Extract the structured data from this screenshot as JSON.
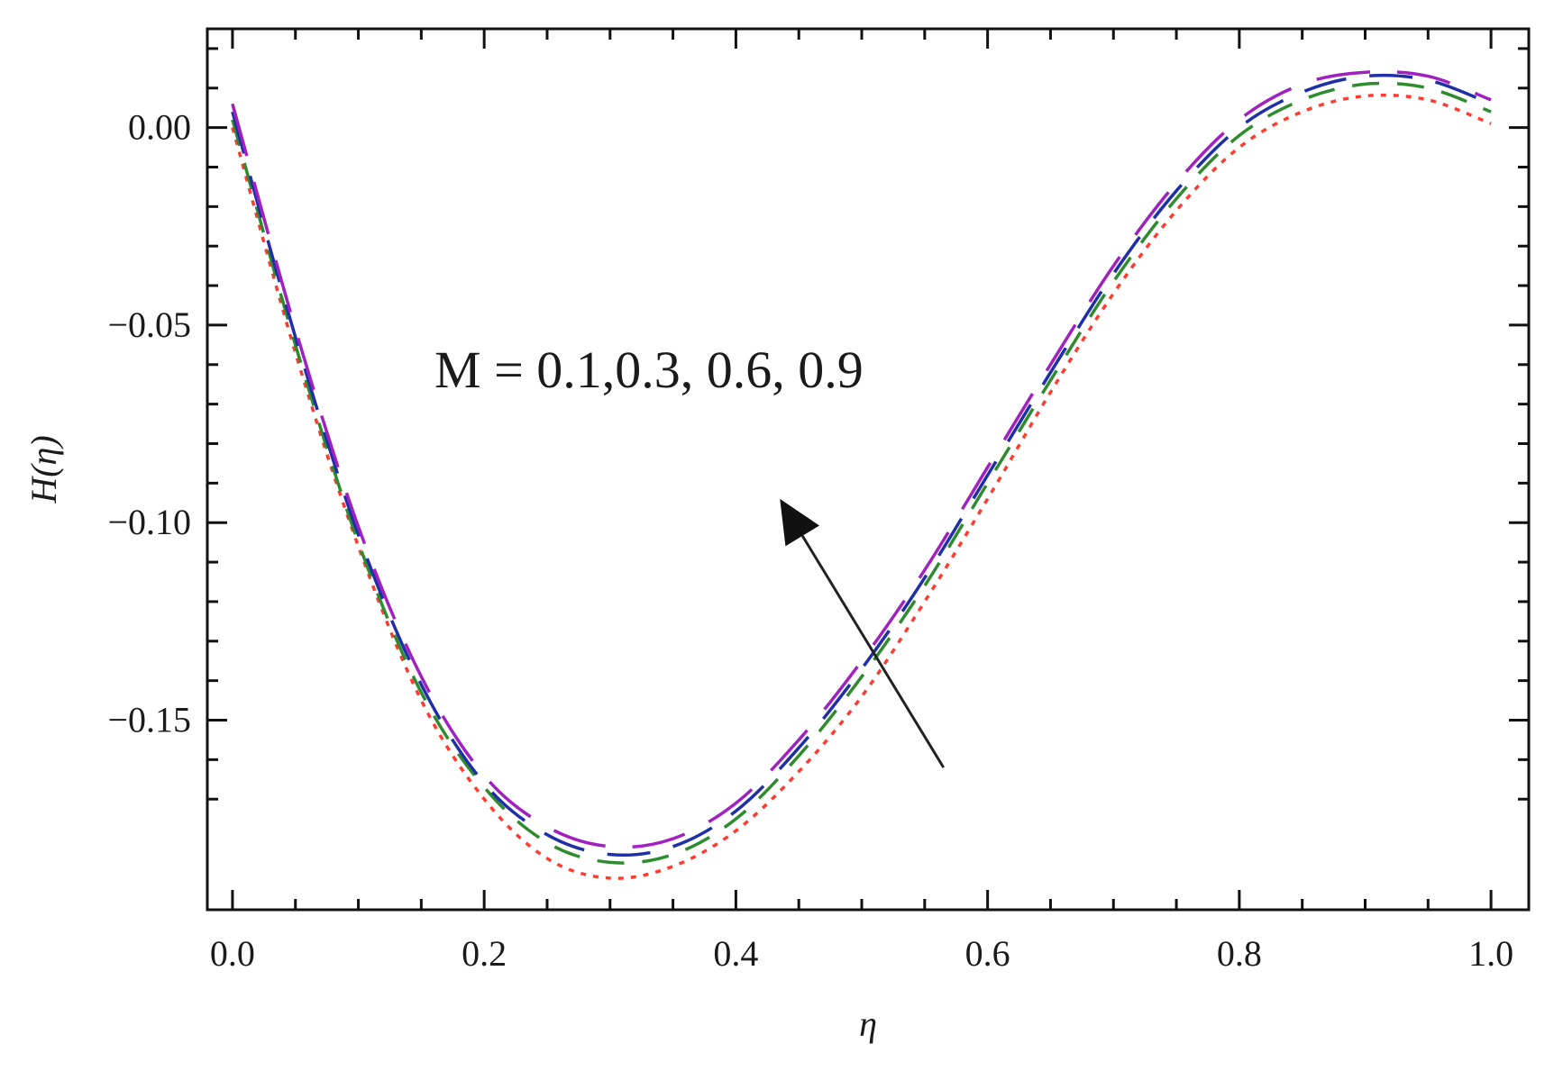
{
  "chart_data": {
    "type": "line",
    "xlabel": "η",
    "ylabel": "H(η)",
    "xlim": [
      -0.02,
      1.03
    ],
    "ylim": [
      -0.198,
      0.025
    ],
    "x_ticks": [
      0.0,
      0.2,
      0.4,
      0.6,
      0.8,
      1.0
    ],
    "x_tick_labels": [
      "0.0",
      "0.2",
      "0.4",
      "0.6",
      "0.8",
      "1.0"
    ],
    "y_ticks": [
      0.0,
      -0.05,
      -0.1,
      -0.15
    ],
    "y_tick_labels": [
      "0.00",
      "−0.05",
      "−0.10",
      "−0.15"
    ],
    "grid": false,
    "annotation": {
      "text": "M =  0.1,0.3, 0.6, 0.9",
      "arrow_from": [
        0.565,
        -0.162
      ],
      "arrow_to": [
        0.435,
        -0.094
      ]
    },
    "series": [
      {
        "color": "#ff3b30",
        "dash": "dotted",
        "x": [
          0.0,
          0.05,
          0.1,
          0.15,
          0.2,
          0.25,
          0.3,
          0.35,
          0.4,
          0.45,
          0.5,
          0.55,
          0.6,
          0.65,
          0.7,
          0.75,
          0.8,
          0.85,
          0.9,
          0.95,
          1.0
        ],
        "y": [
          0.0,
          -0.057,
          -0.106,
          -0.145,
          -0.17,
          -0.185,
          -0.19,
          -0.187,
          -0.178,
          -0.163,
          -0.144,
          -0.12,
          -0.094,
          -0.067,
          -0.042,
          -0.021,
          -0.005,
          0.004,
          0.008,
          0.007,
          0.001
        ]
      },
      {
        "color": "#2e8b2e",
        "dash": "medium",
        "x": [
          0.0,
          0.05,
          0.1,
          0.15,
          0.2,
          0.25,
          0.3,
          0.35,
          0.4,
          0.45,
          0.5,
          0.55,
          0.6,
          0.65,
          0.7,
          0.75,
          0.8,
          0.85,
          0.9,
          0.95,
          1.0
        ],
        "y": [
          0.002,
          -0.055,
          -0.105,
          -0.143,
          -0.167,
          -0.181,
          -0.186,
          -0.184,
          -0.175,
          -0.159,
          -0.139,
          -0.116,
          -0.09,
          -0.064,
          -0.039,
          -0.018,
          -0.002,
          0.007,
          0.011,
          0.01,
          0.004
        ]
      },
      {
        "color": "#1f2fa8",
        "dash": "long",
        "x": [
          0.0,
          0.05,
          0.1,
          0.15,
          0.2,
          0.25,
          0.3,
          0.35,
          0.4,
          0.45,
          0.5,
          0.55,
          0.6,
          0.65,
          0.7,
          0.75,
          0.8,
          0.85,
          0.9,
          0.95,
          1.0
        ],
        "y": [
          0.004,
          -0.053,
          -0.103,
          -0.141,
          -0.166,
          -0.179,
          -0.184,
          -0.182,
          -0.173,
          -0.157,
          -0.137,
          -0.114,
          -0.088,
          -0.062,
          -0.037,
          -0.016,
          0.0,
          0.009,
          0.013,
          0.012,
          0.006
        ]
      },
      {
        "color": "#a020c0",
        "dash": "longer",
        "x": [
          0.0,
          0.05,
          0.1,
          0.15,
          0.2,
          0.25,
          0.3,
          0.35,
          0.4,
          0.45,
          0.5,
          0.55,
          0.6,
          0.65,
          0.7,
          0.75,
          0.8,
          0.85,
          0.9,
          0.95,
          1.0
        ],
        "y": [
          0.006,
          -0.051,
          -0.101,
          -0.139,
          -0.164,
          -0.177,
          -0.182,
          -0.18,
          -0.171,
          -0.155,
          -0.135,
          -0.112,
          -0.086,
          -0.06,
          -0.035,
          -0.014,
          0.002,
          0.011,
          0.014,
          0.013,
          0.007
        ]
      }
    ]
  }
}
